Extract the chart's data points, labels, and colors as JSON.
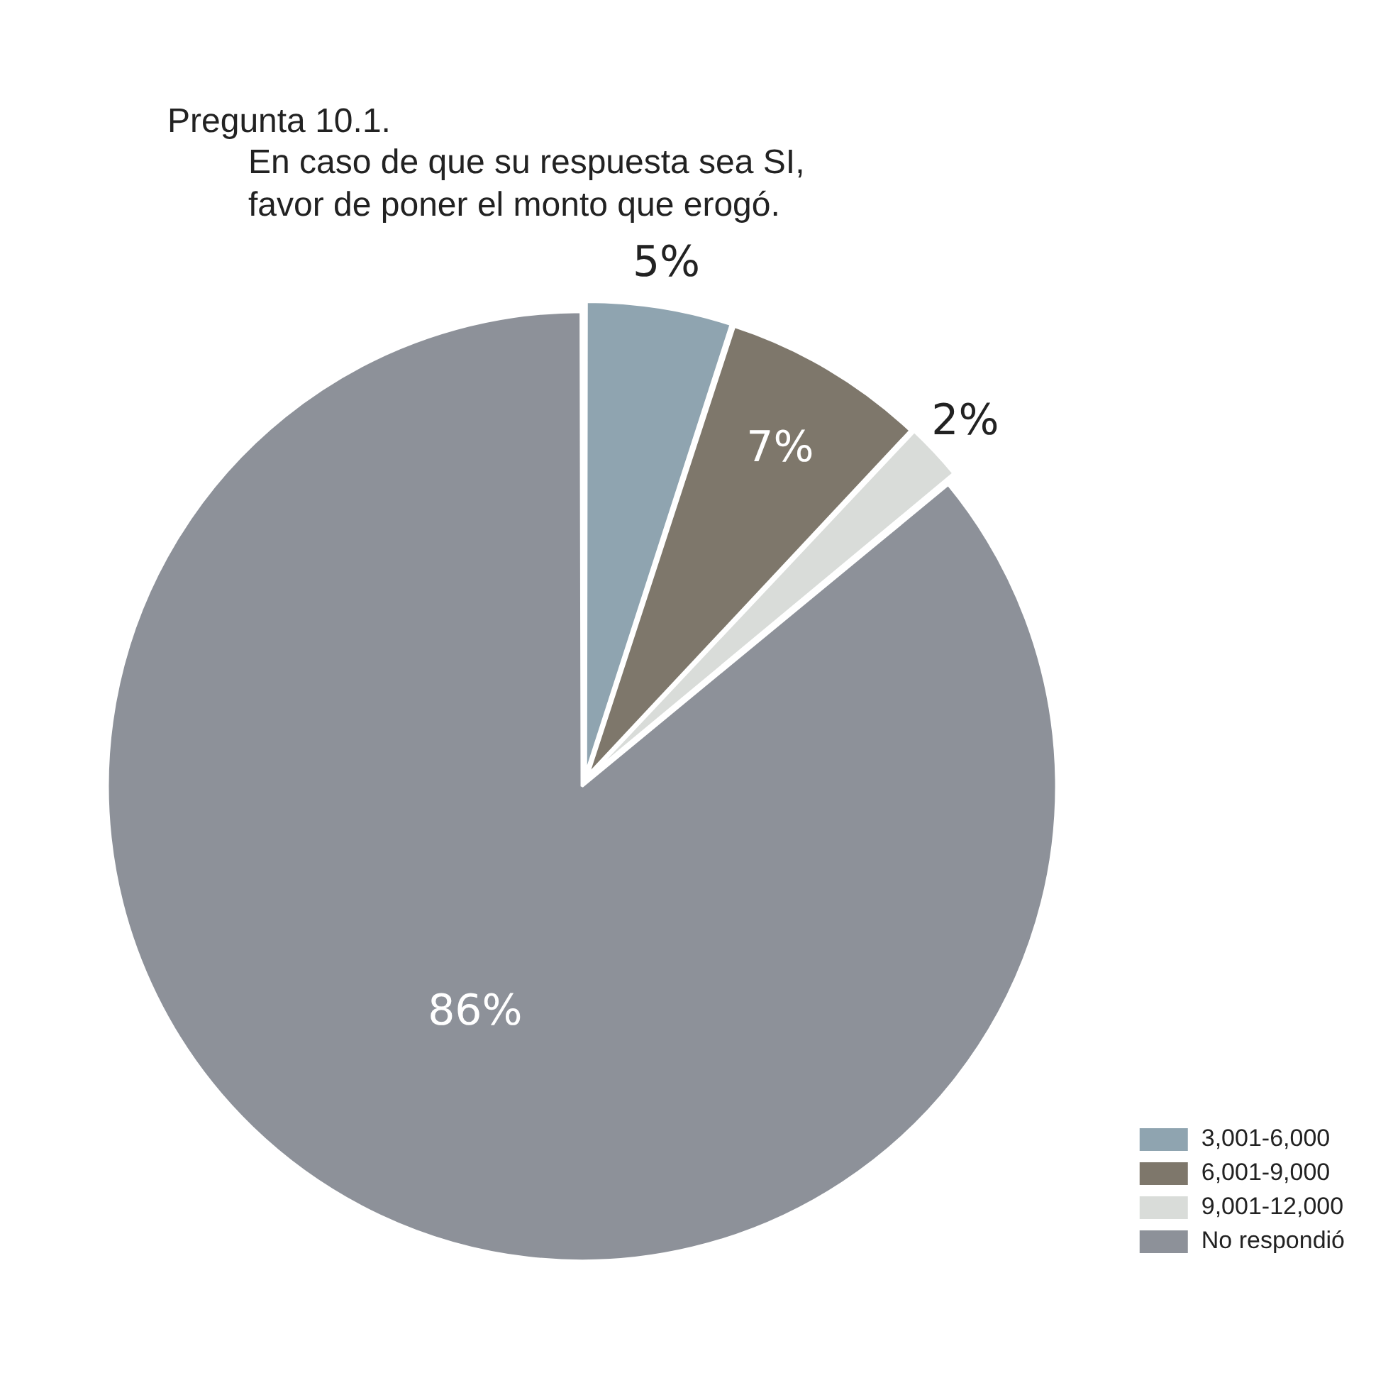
{
  "chart_data": {
    "type": "pie",
    "title": "Pregunta 10.1.",
    "subtitle": "En caso de que su respuesta sea SI,\nfavor de poner el monto que erogó.",
    "categories": [
      "3,001-6,000",
      "6,001-9,000",
      "9,001-12,000",
      "No respondió"
    ],
    "values": [
      5,
      7,
      2,
      86
    ],
    "colors": [
      "#8fa4b0",
      "#7e776b",
      "#d9dcd9",
      "#8d9199"
    ],
    "value_labels": [
      "5%",
      "7%",
      "2%",
      "86%"
    ],
    "legend": "bottom right"
  }
}
